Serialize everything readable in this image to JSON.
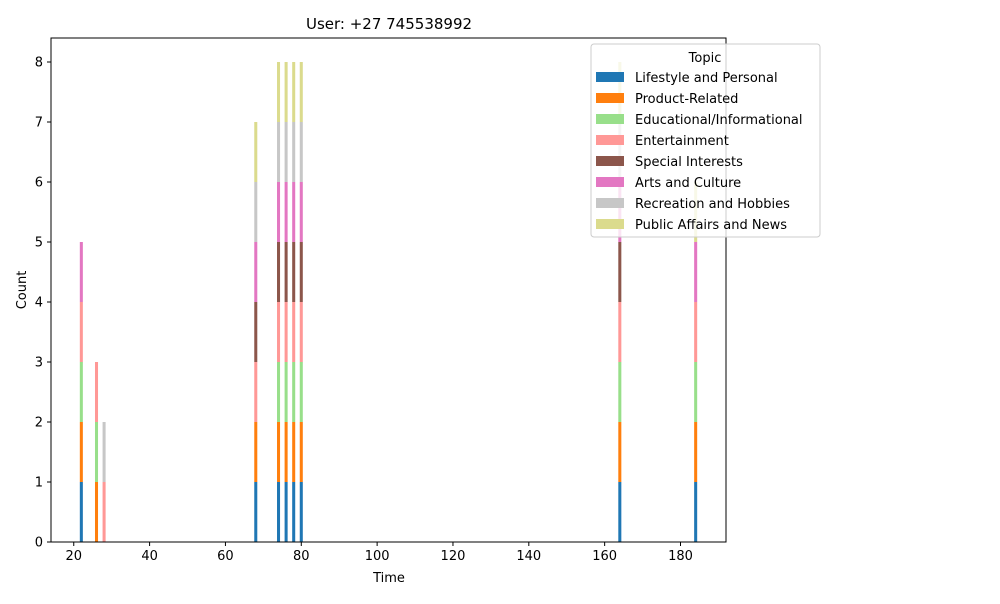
{
  "chart_data": {
    "type": "bar",
    "stacked": true,
    "title": "User: +27 745538992",
    "xlabel": "Time",
    "ylabel": "Count",
    "xlim": [
      14,
      192
    ],
    "ylim": [
      0,
      8.4
    ],
    "xticks": [
      20,
      40,
      60,
      80,
      100,
      120,
      140,
      160,
      180
    ],
    "yticks": [
      0,
      1,
      2,
      3,
      4,
      5,
      6,
      7,
      8
    ],
    "grid": false,
    "bar_width": 0.8,
    "legend": {
      "title": "Topic",
      "placement": "top-right"
    },
    "x": [
      22,
      26,
      28,
      68,
      74,
      76,
      78,
      80,
      164,
      184
    ],
    "series": [
      {
        "name": "Lifestyle and Personal",
        "color": "#1f77b4",
        "values": [
          1,
          0,
          0,
          1,
          1,
          1,
          1,
          1,
          1,
          1
        ]
      },
      {
        "name": "Product-Related",
        "color": "#ff7f0e",
        "values": [
          1,
          1,
          0,
          1,
          1,
          1,
          1,
          1,
          1,
          1
        ]
      },
      {
        "name": "Educational/Informational",
        "color": "#98df8a",
        "values": [
          1,
          1,
          0,
          0,
          1,
          1,
          1,
          1,
          1,
          1
        ]
      },
      {
        "name": "Entertainment",
        "color": "#ff9896",
        "values": [
          1,
          1,
          1,
          1,
          1,
          1,
          1,
          1,
          1,
          1
        ]
      },
      {
        "name": "Special Interests",
        "color": "#8c564b",
        "values": [
          0,
          0,
          0,
          1,
          1,
          1,
          1,
          1,
          1,
          0
        ]
      },
      {
        "name": "Arts and Culture",
        "color": "#e377c2",
        "values": [
          1,
          0,
          0,
          1,
          1,
          1,
          1,
          1,
          1,
          1
        ]
      },
      {
        "name": "Recreation and Hobbies",
        "color": "#c7c7c7",
        "values": [
          0,
          0,
          1,
          1,
          1,
          1,
          1,
          1,
          1,
          0
        ]
      },
      {
        "name": "Public Affairs and News",
        "color": "#dbdb8d",
        "values": [
          0,
          0,
          0,
          1,
          1,
          1,
          1,
          1,
          1,
          1
        ]
      }
    ]
  }
}
